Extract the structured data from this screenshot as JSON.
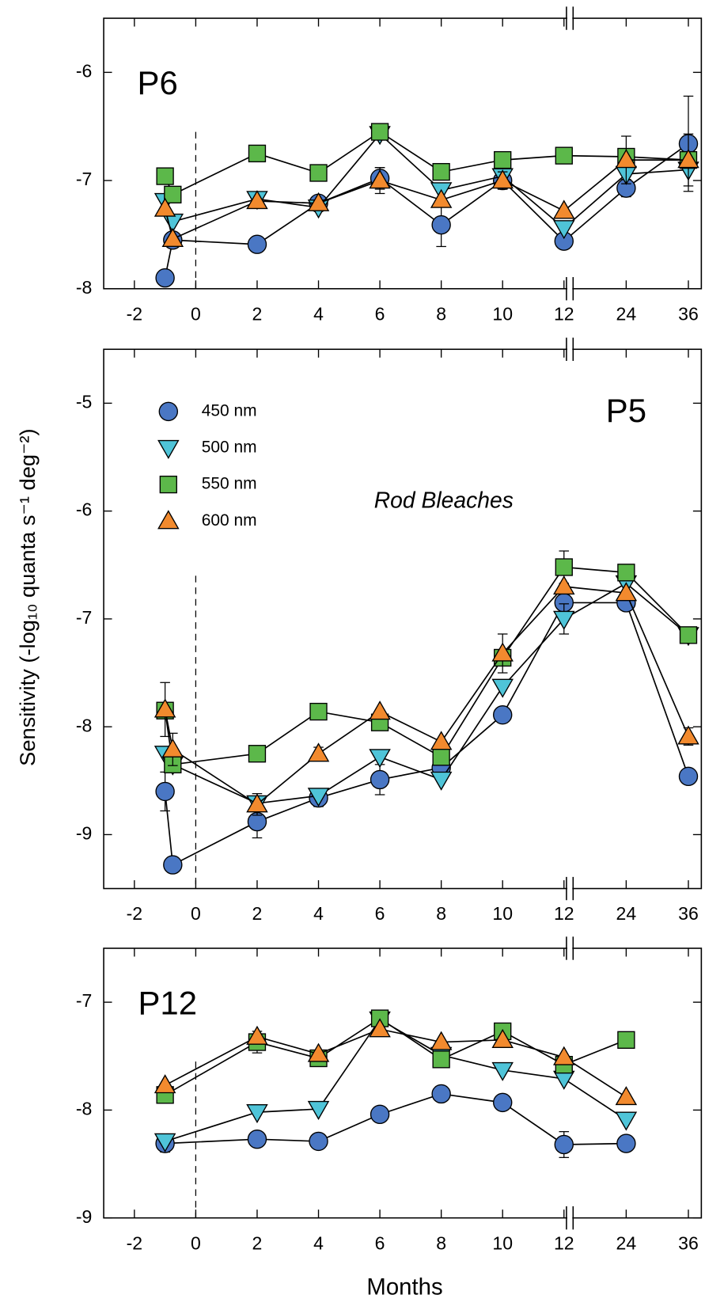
{
  "y_label": "Sensitivity (-log₁₀ quanta s⁻¹ deg⁻²)",
  "x_label": "Months",
  "chart_data": [
    {
      "type": "line",
      "title": "P6",
      "axis_break": 12,
      "reference_line_x": 0,
      "x": [
        -1,
        -0.75,
        2,
        4,
        6,
        8,
        10,
        12,
        24,
        36
      ],
      "xlim": [
        -3,
        38.5
      ],
      "xticks": [
        -2,
        0,
        2,
        4,
        6,
        8,
        10,
        12,
        24,
        36
      ],
      "ylim": [
        -8,
        -5.5
      ],
      "yticks": [
        -8,
        -7,
        -6
      ],
      "series": [
        {
          "name": "450 nm",
          "color": "#4a77c4",
          "marker": "circle",
          "values": [
            -7.9,
            -7.55,
            -7.59,
            -7.21,
            -6.98,
            -7.41,
            -7.0,
            -7.56,
            -7.07,
            -6.66
          ],
          "errors": [
            null,
            null,
            null,
            null,
            0.1,
            0.2,
            0.08,
            null,
            0.08,
            0.44
          ]
        },
        {
          "name": "500 nm",
          "color": "#4fc4d8",
          "marker": "triangle-down",
          "values": [
            -7.19,
            -7.38,
            -7.17,
            -7.25,
            -6.57,
            -7.09,
            -6.96,
            -7.44,
            -6.94,
            -6.9
          ]
        },
        {
          "name": "550 nm",
          "color": "#5cb84a",
          "marker": "square",
          "values": [
            -6.96,
            -7.13,
            -6.75,
            -6.93,
            -6.55,
            -6.92,
            -6.81,
            -6.77,
            -6.78,
            -6.81
          ]
        },
        {
          "name": "600 nm",
          "color": "#f28a2e",
          "marker": "triangle-up",
          "values": [
            -7.26,
            -7.54,
            -7.19,
            -7.21,
            -7.0,
            -7.18,
            -7.0,
            -7.28,
            -6.81,
            -6.81
          ],
          "errors": [
            null,
            null,
            null,
            null,
            0.12,
            null,
            0.08,
            null,
            0.22,
            0.24
          ]
        }
      ]
    },
    {
      "type": "line",
      "title": "P5",
      "subtitle": "Rod Bleaches",
      "axis_break": 12,
      "reference_line_x": 0,
      "legend": "upper left",
      "x": [
        -1,
        -0.75,
        2,
        4,
        6,
        8,
        10,
        12,
        24,
        36
      ],
      "xlim": [
        -3,
        38.5
      ],
      "xticks": [
        -2,
        0,
        2,
        4,
        6,
        8,
        10,
        12,
        24,
        36
      ],
      "ylim": [
        -9.5,
        -4.5
      ],
      "yticks": [
        -9,
        -8,
        -7,
        -6,
        -5
      ],
      "series": [
        {
          "name": "450 nm",
          "color": "#4a77c4",
          "marker": "circle",
          "values": [
            -8.6,
            -9.28,
            -8.88,
            -8.66,
            -8.49,
            -8.38,
            -7.89,
            -6.85,
            -6.85,
            -8.46
          ],
          "errors": [
            0.18,
            null,
            0.15,
            0.08,
            0.14,
            null,
            null,
            0.1,
            null,
            null
          ]
        },
        {
          "name": "500 nm",
          "color": "#4fc4d8",
          "marker": "triangle-down",
          "values": [
            -8.25,
            -8.35,
            -8.71,
            -8.64,
            -8.28,
            -8.49,
            -7.63,
            -7.0,
            -6.67,
            -7.15
          ],
          "errors": [
            null,
            null,
            null,
            null,
            null,
            null,
            null,
            0.14,
            null,
            null
          ]
        },
        {
          "name": "550 nm",
          "color": "#5cb84a",
          "marker": "square",
          "values": [
            -7.85,
            -8.35,
            -8.25,
            -7.86,
            -7.96,
            -8.28,
            -7.36,
            -6.52,
            -6.57,
            -7.15
          ],
          "errors": [
            null,
            null,
            null,
            null,
            null,
            null,
            null,
            0.15,
            null,
            null
          ]
        },
        {
          "name": "600 nm",
          "color": "#f28a2e",
          "marker": "triangle-up",
          "values": [
            -7.84,
            -8.21,
            -8.72,
            -8.25,
            -7.86,
            -8.14,
            -7.32,
            -6.7,
            -6.76,
            -8.09
          ],
          "errors": [
            0.25,
            0.15,
            0.1,
            0.06,
            null,
            null,
            0.18,
            null,
            null,
            0.08
          ]
        }
      ]
    },
    {
      "type": "line",
      "title": "P12",
      "axis_break": 12,
      "reference_line_x": 0,
      "x": [
        -1,
        2,
        4,
        6,
        8,
        10,
        12,
        24
      ],
      "xlim": [
        -3,
        38.5
      ],
      "xticks": [
        -2,
        0,
        2,
        4,
        6,
        8,
        10,
        12,
        24,
        36
      ],
      "ylim": [
        -9,
        -6.5
      ],
      "yticks": [
        -9,
        -8,
        -7
      ],
      "series": [
        {
          "name": "450 nm",
          "color": "#4a77c4",
          "marker": "circle",
          "values": [
            -8.31,
            -8.27,
            -8.29,
            -8.04,
            -7.85,
            -7.93,
            -8.32,
            -8.31
          ],
          "errors": [
            0.08,
            null,
            null,
            null,
            null,
            null,
            0.12,
            null
          ]
        },
        {
          "name": "500 nm",
          "color": "#4fc4d8",
          "marker": "triangle-down",
          "values": [
            -8.29,
            -8.02,
            -7.99,
            -7.16,
            -7.49,
            -7.63,
            -7.71,
            -8.09
          ]
        },
        {
          "name": "550 nm",
          "color": "#5cb84a",
          "marker": "square",
          "values": [
            -7.86,
            -7.37,
            -7.52,
            -7.15,
            -7.53,
            -7.27,
            -7.58,
            -7.35
          ],
          "errors": [
            null,
            0.1,
            null,
            null,
            null,
            null,
            null,
            null
          ]
        },
        {
          "name": "600 nm",
          "color": "#f28a2e",
          "marker": "triangle-up",
          "values": [
            -7.77,
            -7.32,
            -7.48,
            -7.25,
            -7.37,
            -7.35,
            -7.51,
            -7.88
          ]
        }
      ]
    }
  ]
}
